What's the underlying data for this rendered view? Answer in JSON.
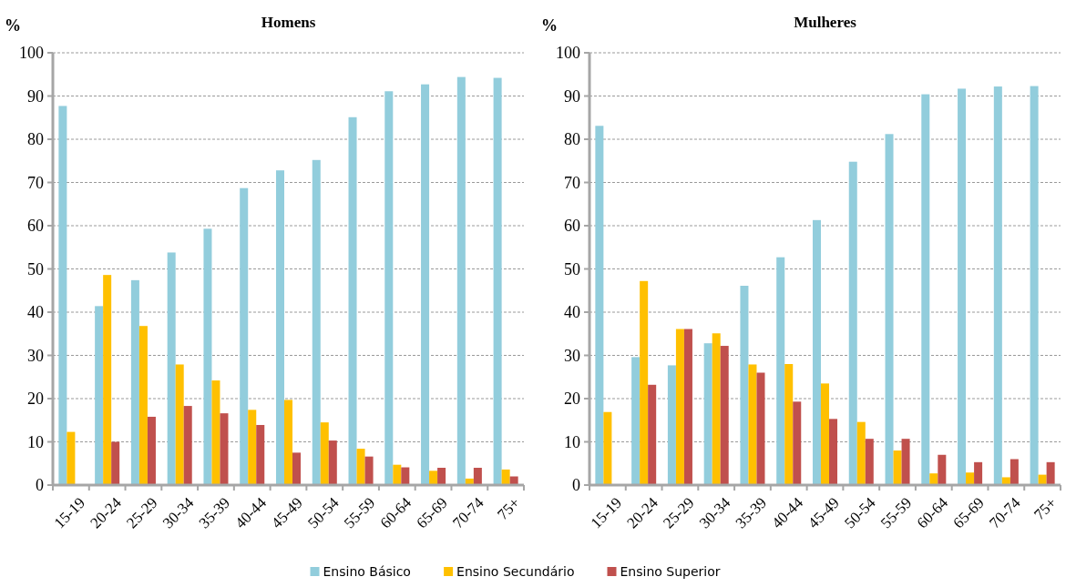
{
  "chart_data": [
    {
      "type": "bar",
      "title": "Homens",
      "ylabel": "%",
      "categories": [
        "15-19",
        "20-24",
        "25-29",
        "30-34",
        "35-39",
        "40-44",
        "45-49",
        "50-54",
        "55-59",
        "60-64",
        "65-69",
        "70-74",
        "75+"
      ],
      "series": [
        {
          "name": "Ensino Básico",
          "color": "#92cddc",
          "values": [
            87.7,
            41.4,
            47.4,
            53.8,
            59.3,
            68.7,
            72.8,
            75.2,
            85.1,
            91.1,
            92.7,
            94.4,
            94.2
          ]
        },
        {
          "name": "Ensino Secundário",
          "color": "#ffc000",
          "values": [
            12.3,
            48.6,
            36.8,
            27.9,
            24.2,
            17.4,
            19.7,
            14.5,
            8.4,
            4.7,
            3.3,
            1.5,
            3.6
          ]
        },
        {
          "name": "Ensino Superior",
          "color": "#c0504d",
          "values": [
            0,
            10,
            15.8,
            18.3,
            16.6,
            13.9,
            7.5,
            10.3,
            6.6,
            4.1,
            4,
            4,
            2
          ]
        }
      ],
      "ylim": [
        0,
        100
      ],
      "yticks": [
        0,
        10,
        20,
        30,
        40,
        50,
        60,
        70,
        80,
        90,
        100
      ],
      "grid": "y",
      "legend": "bottom"
    },
    {
      "type": "bar",
      "title": "Mulheres",
      "ylabel": "%",
      "categories": [
        "15-19",
        "20-24",
        "25-29",
        "30-34",
        "35-39",
        "40-44",
        "45-49",
        "50-54",
        "55-59",
        "60-64",
        "65-69",
        "70-74",
        "75+"
      ],
      "series": [
        {
          "color": "#92cddc",
          "values": [
            83.1,
            29.6,
            27.7,
            32.8,
            46.1,
            52.7,
            61.3,
            74.8,
            81.2,
            90.4,
            91.7,
            92.2,
            92.3
          ]
        },
        {
          "color": "#ffc000",
          "values": [
            16.9,
            47.2,
            36.1,
            35.1,
            27.9,
            28,
            23.5,
            14.6,
            8,
            2.7,
            2.9,
            1.8,
            2.4
          ]
        },
        {
          "color": "#c0504d",
          "values": [
            0,
            23.2,
            36.1,
            32.2,
            26,
            19.3,
            15.3,
            10.7,
            10.7,
            7,
            5.3,
            6,
            5.3
          ]
        }
      ],
      "ylim": [
        0,
        100
      ],
      "yticks": [
        0,
        10,
        20,
        30,
        40,
        50,
        60,
        70,
        80,
        90,
        100
      ],
      "grid": "y"
    }
  ]
}
